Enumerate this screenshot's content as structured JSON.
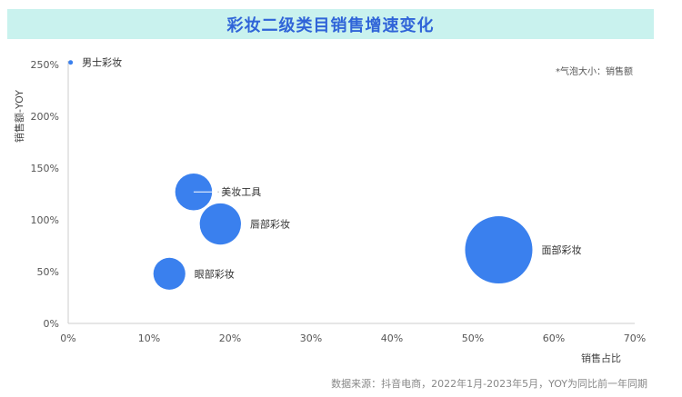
{
  "title": "彩妆二级类目销售增速变化",
  "note": "*气泡大小：销售额",
  "source": "数据来源：抖音电商，2022年1月-2023年5月，YOY为同比前一年同期",
  "colors": {
    "bubble": "#3a80ee",
    "title": "#2f64d8",
    "title_bg": "#c9f2ee",
    "axis": "#cccccc"
  },
  "chart_data": {
    "type": "scatter",
    "xlabel": "销售占比",
    "ylabel": "销售额-YOY",
    "xlim": [
      0,
      0.7
    ],
    "ylim": [
      0,
      2.5
    ],
    "x_ticks": [
      "0%",
      "10%",
      "20%",
      "30%",
      "40%",
      "50%",
      "60%",
      "70%"
    ],
    "y_ticks": [
      "0%",
      "50%",
      "100%",
      "150%",
      "200%",
      "250%"
    ],
    "points": [
      {
        "label": "男士彩妆",
        "x": 0.003,
        "y": 2.52,
        "size": 0.05
      },
      {
        "label": "美妆工具",
        "x": 0.155,
        "y": 1.27,
        "size": 6
      },
      {
        "label": "唇部彩妆",
        "x": 0.188,
        "y": 0.96,
        "size": 7.5
      },
      {
        "label": "眼部彩妆",
        "x": 0.125,
        "y": 0.48,
        "size": 4.5
      },
      {
        "label": "面部彩妆",
        "x": 0.532,
        "y": 0.71,
        "size": 20
      }
    ]
  }
}
